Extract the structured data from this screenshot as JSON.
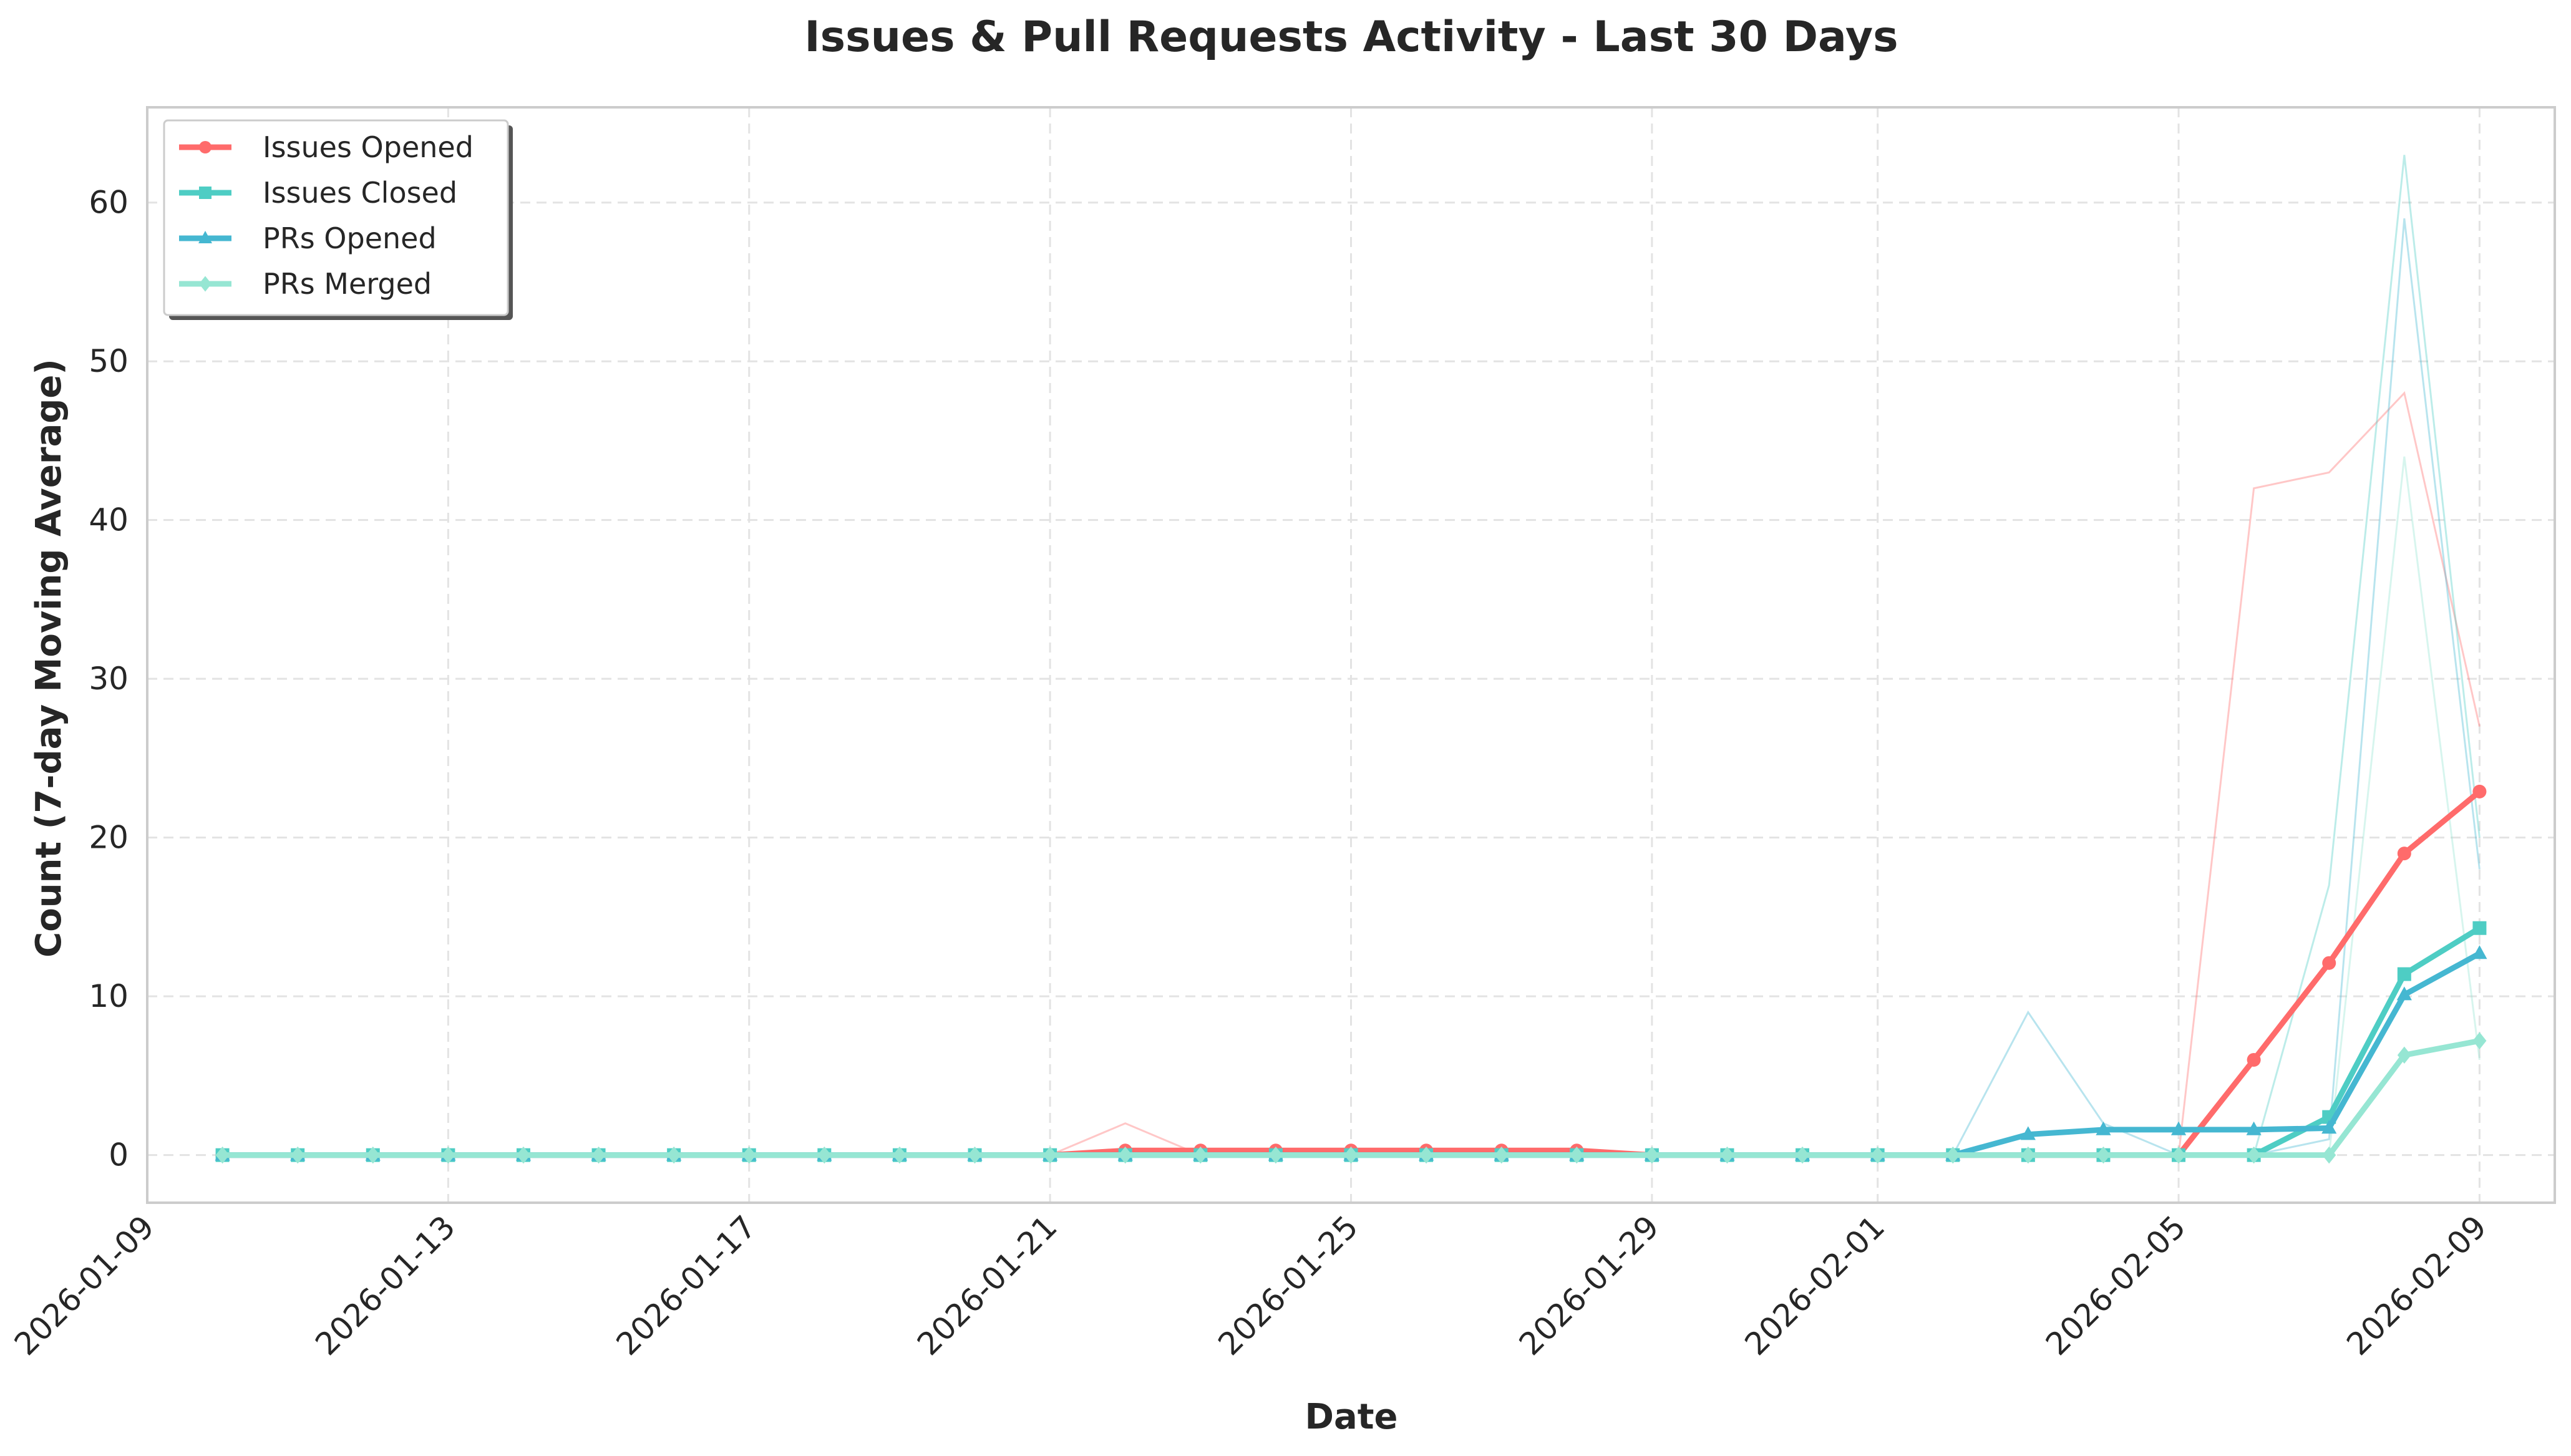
{
  "chart_data": {
    "type": "line",
    "title": "Issues & Pull Requests Activity - Last 30 Days",
    "xlabel": "Date",
    "ylabel": "Count (7-day Moving Average)",
    "xlim": [
      "2026-01-09",
      "2026-02-10"
    ],
    "ylim": [
      -3,
      66
    ],
    "x_ticks": [
      "2026-01-09",
      "2026-01-13",
      "2026-01-17",
      "2026-01-21",
      "2026-01-25",
      "2026-01-29",
      "2026-02-01",
      "2026-02-05",
      "2026-02-09"
    ],
    "y_ticks": [
      0,
      10,
      20,
      30,
      40,
      50,
      60
    ],
    "grid": true,
    "legend_position": "top-left",
    "x": [
      "2026-01-10",
      "2026-01-11",
      "2026-01-12",
      "2026-01-13",
      "2026-01-14",
      "2026-01-15",
      "2026-01-16",
      "2026-01-17",
      "2026-01-18",
      "2026-01-19",
      "2026-01-20",
      "2026-01-21",
      "2026-01-22",
      "2026-01-23",
      "2026-01-24",
      "2026-01-25",
      "2026-01-26",
      "2026-01-27",
      "2026-01-28",
      "2026-01-29",
      "2026-01-30",
      "2026-01-31",
      "2026-02-01",
      "2026-02-02",
      "2026-02-03",
      "2026-02-04",
      "2026-02-05",
      "2026-02-06",
      "2026-02-07",
      "2026-02-08",
      "2026-02-09"
    ],
    "series": [
      {
        "name": "Issues Opened",
        "color": "#ff6b6b",
        "marker": "circle",
        "values": [
          0,
          0,
          0,
          0,
          0,
          0,
          0,
          0,
          0,
          0,
          0,
          0,
          0.29,
          0.29,
          0.29,
          0.29,
          0.29,
          0.29,
          0.29,
          0,
          0,
          0,
          0,
          0,
          0,
          0,
          0,
          6.0,
          12.1,
          19.0,
          22.9
        ],
        "raw_values": [
          0,
          0,
          0,
          0,
          0,
          0,
          0,
          0,
          0,
          0,
          0,
          0,
          2,
          0,
          0,
          0,
          0,
          0,
          0,
          0,
          0,
          0,
          0,
          0,
          0,
          0,
          0,
          42,
          43,
          48,
          27
        ]
      },
      {
        "name": "Issues Closed",
        "color": "#4ecdc4",
        "marker": "square",
        "values": [
          0,
          0,
          0,
          0,
          0,
          0,
          0,
          0,
          0,
          0,
          0,
          0,
          0,
          0,
          0,
          0,
          0,
          0,
          0,
          0,
          0,
          0,
          0,
          0,
          0,
          0,
          0,
          0,
          2.4,
          11.4,
          14.3
        ],
        "raw_values": [
          0,
          0,
          0,
          0,
          0,
          0,
          0,
          0,
          0,
          0,
          0,
          0,
          0,
          0,
          0,
          0,
          0,
          0,
          0,
          0,
          0,
          0,
          0,
          0,
          0,
          0,
          0,
          0,
          17,
          63,
          20
        ]
      },
      {
        "name": "PRs Opened",
        "color": "#45b7d1",
        "marker": "triangle",
        "values": [
          0,
          0,
          0,
          0,
          0,
          0,
          0,
          0,
          0,
          0,
          0,
          0,
          0,
          0,
          0,
          0,
          0,
          0,
          0,
          0,
          0,
          0,
          0,
          0,
          1.3,
          1.6,
          1.6,
          1.6,
          1.7,
          10.1,
          12.7
        ],
        "raw_values": [
          0,
          0,
          0,
          0,
          0,
          0,
          0,
          0,
          0,
          0,
          0,
          0,
          0,
          0,
          0,
          0,
          0,
          0,
          0,
          0,
          0,
          0,
          0,
          0,
          9,
          2,
          0,
          0,
          1,
          59,
          18
        ]
      },
      {
        "name": "PRs Merged",
        "color": "#96e6d3",
        "marker": "diamond",
        "values": [
          0,
          0,
          0,
          0,
          0,
          0,
          0,
          0,
          0,
          0,
          0,
          0,
          0,
          0,
          0,
          0,
          0,
          0,
          0,
          0,
          0,
          0,
          0,
          0,
          0,
          0,
          0,
          0,
          0,
          6.3,
          7.2
        ],
        "raw_values": [
          0,
          0,
          0,
          0,
          0,
          0,
          0,
          0,
          0,
          0,
          0,
          0,
          0,
          0,
          0,
          0,
          0,
          0,
          0,
          0,
          0,
          0,
          0,
          0,
          0,
          0,
          0,
          0,
          0,
          44,
          6
        ]
      }
    ]
  }
}
